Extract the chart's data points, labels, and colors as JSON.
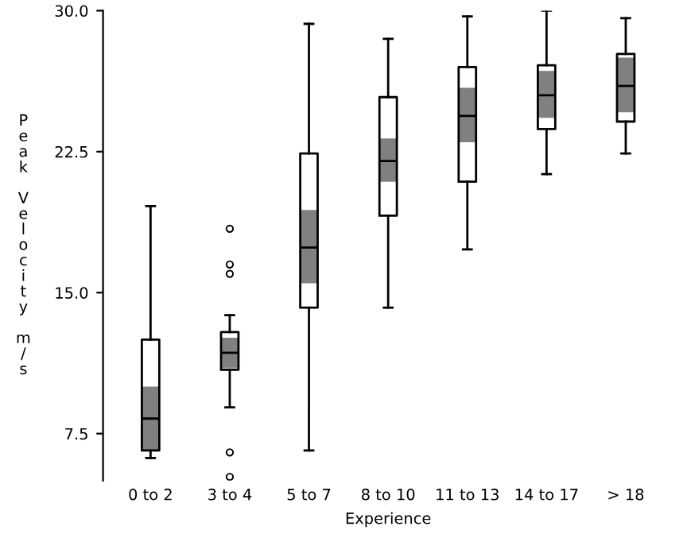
{
  "chart_data": {
    "type": "box",
    "xlabel": "Experience",
    "ylabel": "Peak Velocity m/s",
    "categories": [
      "0 to 2",
      "3 to 4",
      "5 to 7",
      "8 to 10",
      "11 to 13",
      "14 to 17",
      "> 18"
    ],
    "boxes": [
      {
        "low": 6.2,
        "q1": 6.6,
        "median": 8.3,
        "q3": 12.5,
        "high": 19.6
      },
      {
        "low": 8.9,
        "q1": 10.9,
        "median": 11.8,
        "q3": 12.9,
        "high": 13.8,
        "outliers": [
          18.4,
          16.5,
          16.0,
          6.5,
          5.2
        ]
      },
      {
        "low": 6.6,
        "q1": 14.2,
        "median": 17.4,
        "q3": 22.4,
        "high": 29.3
      },
      {
        "low": 14.2,
        "q1": 19.1,
        "median": 22.0,
        "q3": 25.4,
        "high": 28.5
      },
      {
        "low": 17.3,
        "q1": 20.9,
        "median": 24.4,
        "q3": 27.0,
        "high": 29.7
      },
      {
        "low": 21.3,
        "q1": 23.7,
        "median": 25.5,
        "q3": 27.1,
        "high": 30.0
      },
      {
        "low": 22.4,
        "q1": 24.1,
        "median": 26.0,
        "q3": 27.7,
        "high": 29.6
      }
    ],
    "series": [
      {
        "type": "bar",
        "color": "#808080",
        "base": [
          6.6,
          11.0,
          15.5,
          20.9,
          23.0,
          24.3,
          24.6
        ],
        "values": [
          3.4,
          1.6,
          3.9,
          2.3,
          2.9,
          2.5,
          2.9
        ]
      }
    ],
    "ylim": [
      5,
      30
    ],
    "yticks": [
      {
        "value": 7.5,
        "label": "7.5"
      },
      {
        "value": 15,
        "label": "15.0"
      },
      {
        "value": 22.5,
        "label": "22.5"
      },
      {
        "value": 30,
        "label": "30.0"
      }
    ],
    "grid": false
  }
}
